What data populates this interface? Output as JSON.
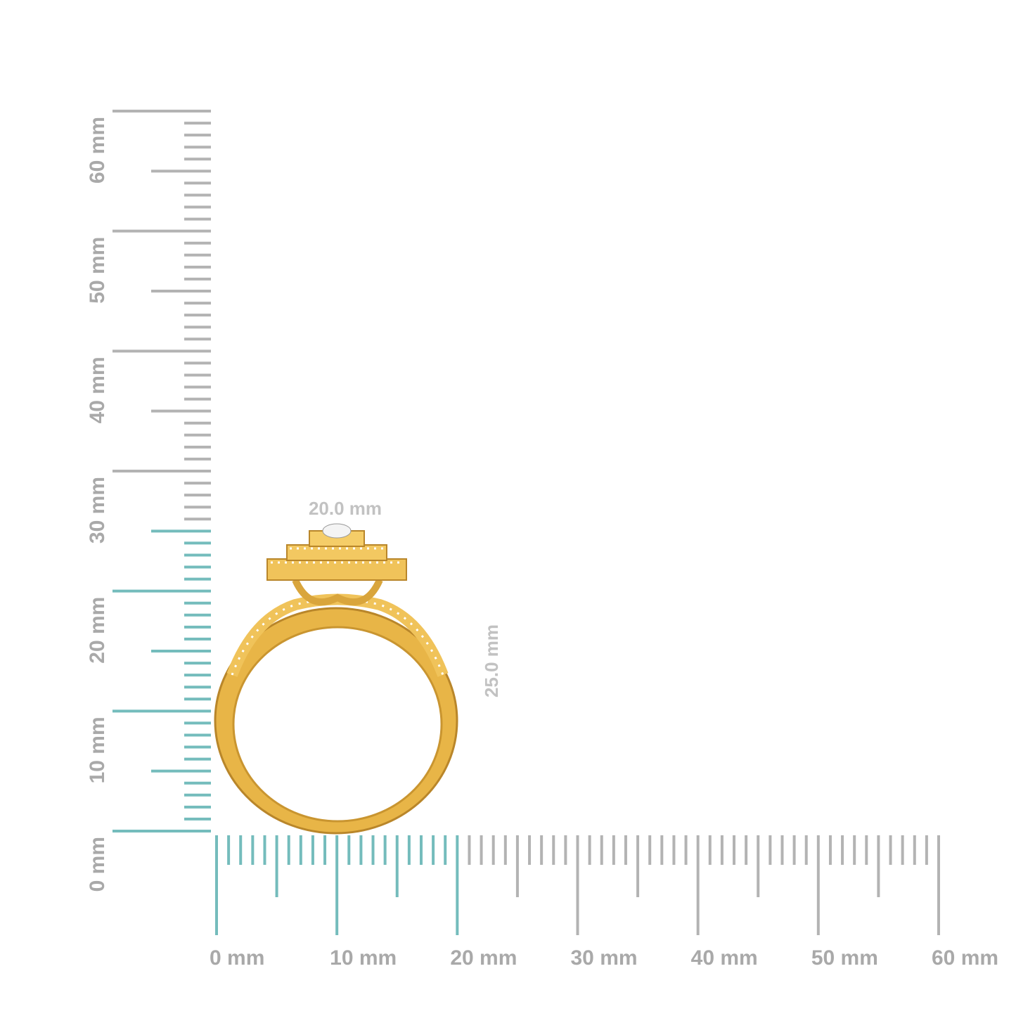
{
  "horizontal_ruler": {
    "labels": [
      "0 mm",
      "10 mm",
      "20 mm",
      "30 mm",
      "40 mm",
      "50 mm",
      "60 mm"
    ]
  },
  "vertical_ruler": {
    "labels": [
      "0 mm",
      "10 mm",
      "20 mm",
      "30 mm",
      "40 mm",
      "50 mm",
      "60 mm"
    ]
  },
  "dimensions": {
    "width": "20.0 mm",
    "height": "25.0 mm"
  }
}
